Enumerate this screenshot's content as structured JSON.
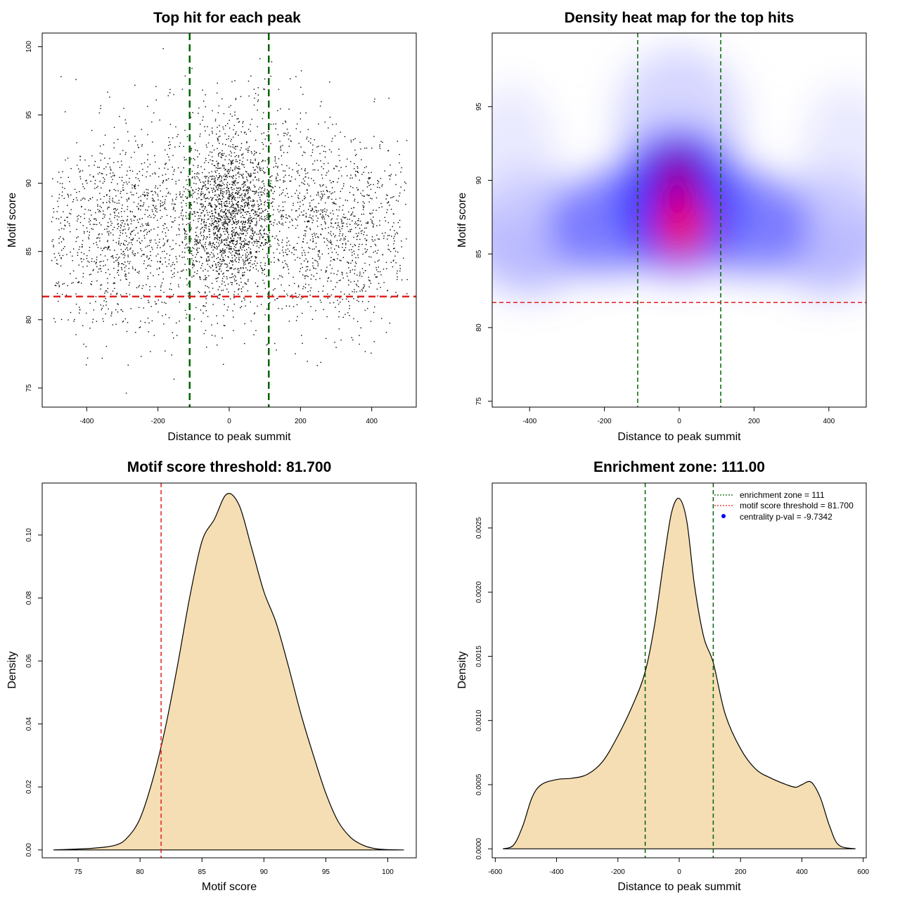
{
  "chart_data": [
    {
      "type": "scatter",
      "title": "Top hit for each peak",
      "xlabel": "Distance to peak summit",
      "ylabel": "Motif score",
      "xlim": [
        -525,
        525
      ],
      "ylim": [
        73.6,
        101
      ],
      "xticks": [
        -400,
        -200,
        0,
        200,
        400
      ],
      "yticks": [
        75,
        80,
        85,
        90,
        95,
        100
      ],
      "enrichment_zone": 111,
      "threshold": 81.7,
      "grid": false,
      "colors": {
        "points": "#000000",
        "zone": "#006400",
        "threshold": "#e02020"
      },
      "point_clusters": [
        {
          "x_center": 0,
          "x_spread": 60,
          "y_center": 87.5,
          "y_spread": 2.8,
          "n": 1400
        },
        {
          "x_center": -300,
          "x_spread": 130,
          "y_center": 86.5,
          "y_spread": 3.5,
          "n": 1100
        },
        {
          "x_center": 300,
          "x_spread": 130,
          "y_center": 86.5,
          "y_spread": 3.5,
          "n": 1100
        },
        {
          "x_center": 0,
          "x_spread": 140,
          "y_center": 89,
          "y_spread": 4.2,
          "n": 700
        }
      ]
    },
    {
      "type": "heatmap",
      "title": "Density heat map for the top hits",
      "xlabel": "Distance to peak summit",
      "ylabel": "Motif score",
      "xlim": [
        -500,
        500
      ],
      "ylim": [
        74.6,
        100
      ],
      "xticks": [
        -400,
        -200,
        0,
        200,
        400
      ],
      "yticks": [
        75,
        80,
        85,
        90,
        95
      ],
      "enrichment_zone": 111,
      "threshold": 81.7,
      "palette": [
        "#ffffff",
        "#0000ff",
        "#ff0000"
      ],
      "hotspots": [
        {
          "x": 5,
          "y": 87,
          "intensity": "peak"
        },
        {
          "x": -5,
          "y": 90.2,
          "intensity": "high"
        },
        {
          "x": 0,
          "y": 88,
          "intensity": "broad"
        },
        {
          "x": -380,
          "y": 86,
          "intensity": "moderate"
        },
        {
          "x": 380,
          "y": 86,
          "intensity": "moderate"
        }
      ]
    },
    {
      "type": "area",
      "title": "Motif score threshold: 81.700",
      "xlabel": "Motif score",
      "ylabel": "Density",
      "xlim": [
        72.1,
        102.3
      ],
      "ylim": [
        -0.0025,
        0.1165
      ],
      "xticks": [
        75,
        80,
        85,
        90,
        95,
        100
      ],
      "yticks": [
        0.0,
        0.02,
        0.04,
        0.06,
        0.08,
        0.1
      ],
      "ytick_labels": [
        "0.00",
        "0.02",
        "0.04",
        "0.06",
        "0.08",
        "0.10"
      ],
      "threshold": 81.7,
      "fill": "#f5deb3",
      "x": [
        73,
        76,
        78,
        79,
        80,
        81,
        82,
        83,
        84,
        85,
        86,
        87,
        88,
        89,
        90,
        91,
        92,
        93,
        94,
        95,
        96,
        97,
        98,
        99,
        100,
        101.3
      ],
      "y": [
        0.0,
        0.0005,
        0.0015,
        0.004,
        0.01,
        0.022,
        0.038,
        0.058,
        0.08,
        0.098,
        0.105,
        0.113,
        0.1095,
        0.096,
        0.082,
        0.072,
        0.058,
        0.043,
        0.03,
        0.018,
        0.009,
        0.004,
        0.0015,
        0.0004,
        0.0001,
        0.0
      ]
    },
    {
      "type": "area",
      "title": "Enrichment zone: 111.00",
      "xlabel": "Distance to peak summit",
      "ylabel": "Density",
      "xlim": [
        -610,
        610
      ],
      "ylim": [
        -7e-05,
        0.00285
      ],
      "xticks": [
        -600,
        -400,
        -200,
        0,
        200,
        400,
        600
      ],
      "yticks": [
        0.0,
        0.0005,
        0.001,
        0.0015,
        0.002,
        0.0025
      ],
      "ytick_labels": [
        "0.0000",
        "0.0005",
        "0.0010",
        "0.0015",
        "0.0020",
        "0.0025"
      ],
      "enrichment_zone": 111,
      "fill": "#f5deb3",
      "x": [
        -575,
        -540,
        -510,
        -480,
        -450,
        -400,
        -350,
        -300,
        -250,
        -200,
        -150,
        -111,
        -80,
        -50,
        -25,
        0,
        25,
        50,
        80,
        111,
        150,
        200,
        250,
        300,
        350,
        380,
        400,
        430,
        460,
        490,
        520,
        575
      ],
      "y": [
        0.0,
        3e-05,
        0.00018,
        0.0004,
        0.0005,
        0.00054,
        0.00055,
        0.00058,
        0.00068,
        0.00088,
        0.00113,
        0.00138,
        0.00175,
        0.00225,
        0.00262,
        0.00273,
        0.00255,
        0.00205,
        0.00165,
        0.00145,
        0.00105,
        0.00078,
        0.00062,
        0.00055,
        0.0005,
        0.00048,
        0.0005,
        0.00052,
        0.0004,
        0.00018,
        3e-05,
        0.0
      ]
    }
  ],
  "legend": {
    "entries": [
      {
        "label": "enrichment zone = 111",
        "style": "dotted-line",
        "color": "#006400"
      },
      {
        "label": "motif score threshold = 81.700",
        "style": "dotted-line",
        "color": "#e02020"
      },
      {
        "label": "centrality p-val = -9.7342",
        "style": "dot",
        "color": "#0000ff"
      }
    ]
  }
}
